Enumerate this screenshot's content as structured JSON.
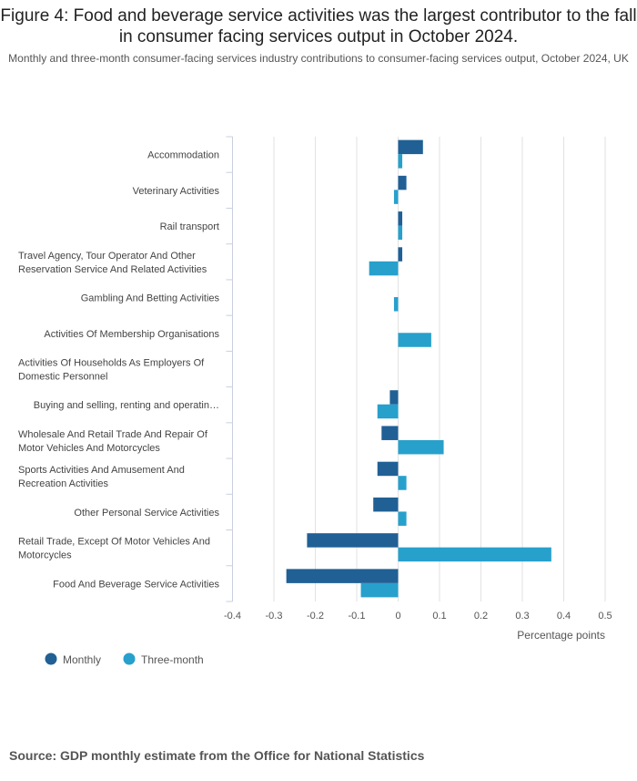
{
  "chart_data": {
    "type": "bar",
    "orientation": "horizontal",
    "title": "Figure 4: Food and beverage service activities was the largest contributor to the fall in consumer facing services output in October 2024.",
    "subtitle": "Monthly and three-month consumer-facing services industry contributions to consumer-facing services output, October 2024, UK",
    "xlabel": "Percentage points",
    "xlim": [
      -0.4,
      0.5
    ],
    "xticks": [
      -0.4,
      -0.3,
      -0.2,
      -0.1,
      0,
      0.1,
      0.2,
      0.3,
      0.4,
      0.5
    ],
    "xtick_labels": [
      "-0.4",
      "-0.3",
      "-0.2",
      "-0.1",
      "0",
      "0.1",
      "0.2",
      "0.3",
      "0.4",
      "0.5"
    ],
    "grid": true,
    "legend_position": "bottom-left",
    "categories": [
      [
        "Accommodation"
      ],
      [
        "Veterinary Activities"
      ],
      [
        "Rail transport"
      ],
      [
        "Travel Agency, Tour Operator And Other",
        "Reservation Service And Related Activities"
      ],
      [
        "Gambling And Betting Activities"
      ],
      [
        "Activities Of Membership Organisations"
      ],
      [
        "Activities Of Households As Employers Of",
        "Domestic Personnel"
      ],
      [
        "Buying and selling, renting and operatin…"
      ],
      [
        "Wholesale And Retail Trade And Repair Of",
        "Motor Vehicles And Motorcycles"
      ],
      [
        "Sports Activities And Amusement And",
        "Recreation Activities"
      ],
      [
        "Other Personal Service Activities"
      ],
      [
        "Retail Trade, Except Of Motor Vehicles And",
        "Motorcycles"
      ],
      [
        "Food And Beverage Service Activities"
      ]
    ],
    "series": [
      {
        "name": "Monthly",
        "color": "#206095",
        "values": [
          0.06,
          0.02,
          0.01,
          0.01,
          0,
          0,
          0,
          -0.02,
          -0.04,
          -0.05,
          -0.06,
          -0.22,
          -0.27
        ]
      },
      {
        "name": "Three-month",
        "color": "#27a0cc",
        "values": [
          0.01,
          -0.01,
          0.01,
          -0.07,
          -0.01,
          0.08,
          0,
          -0.05,
          0.11,
          0.02,
          0.02,
          0.37,
          -0.09
        ]
      }
    ]
  },
  "source": "Source: GDP monthly estimate from the Office for National Statistics"
}
